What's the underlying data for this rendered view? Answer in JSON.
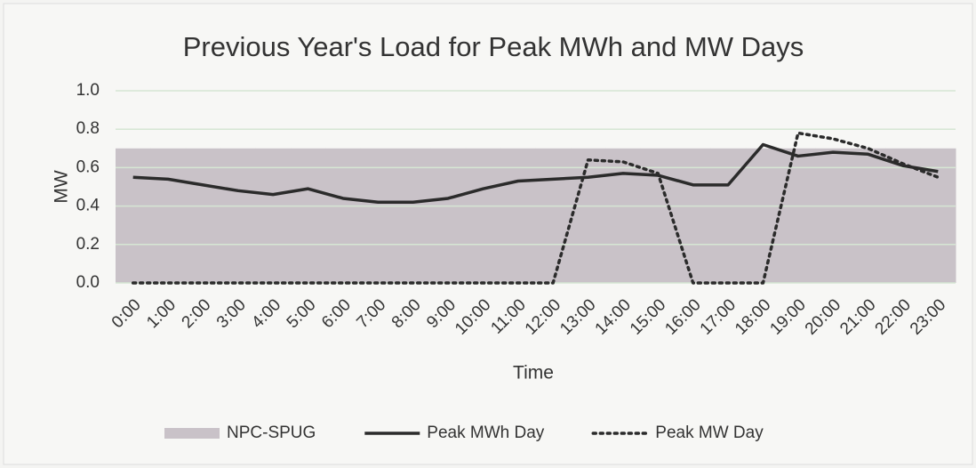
{
  "chart_data": {
    "type": "line",
    "title": "Previous Year's Load for Peak MWh and MW Days",
    "x_label": "Time",
    "y_label": "MW",
    "categories": [
      "0:00",
      "1:00",
      "2:00",
      "3:00",
      "4:00",
      "5:00",
      "6:00",
      "7:00",
      "8:00",
      "9:00",
      "10:00",
      "11:00",
      "12:00",
      "13:00",
      "14:00",
      "15:00",
      "16:00",
      "17:00",
      "18:00",
      "19:00",
      "20:00",
      "21:00",
      "22:00",
      "23:00"
    ],
    "series": [
      {
        "name": "NPC-SPUG",
        "type": "area",
        "color": "#c9c2c8",
        "values": [
          0.7,
          0.7,
          0.7,
          0.7,
          0.7,
          0.7,
          0.7,
          0.7,
          0.7,
          0.7,
          0.7,
          0.7,
          0.7,
          0.7,
          0.7,
          0.7,
          0.7,
          0.7,
          0.7,
          0.7,
          0.7,
          0.7,
          0.7,
          0.7
        ]
      },
      {
        "name": "Peak MWh Day",
        "type": "line",
        "dash": "solid",
        "color": "#2b2b2b",
        "values": [
          0.55,
          0.54,
          0.51,
          0.48,
          0.46,
          0.49,
          0.44,
          0.42,
          0.42,
          0.44,
          0.49,
          0.53,
          0.54,
          0.55,
          0.57,
          0.56,
          0.51,
          0.51,
          0.72,
          0.66,
          0.68,
          0.67,
          0.61,
          0.58
        ]
      },
      {
        "name": "Peak MW Day",
        "type": "line",
        "dash": "dotted",
        "color": "#2b2b2b",
        "values": [
          0,
          0,
          0,
          0,
          0,
          0,
          0,
          0,
          0,
          0,
          0,
          0,
          0,
          0.64,
          0.63,
          0.57,
          0,
          0,
          0,
          0.78,
          0.75,
          0.7,
          0.62,
          0.55
        ]
      }
    ],
    "ylim": [
      0,
      1
    ],
    "yticks": [
      {
        "value": 0,
        "label": "0.0"
      },
      0.2,
      0.4,
      0.6,
      0.8,
      {
        "value": 1,
        "label": "1.0"
      }
    ],
    "grid": true,
    "legend": "bottom"
  }
}
